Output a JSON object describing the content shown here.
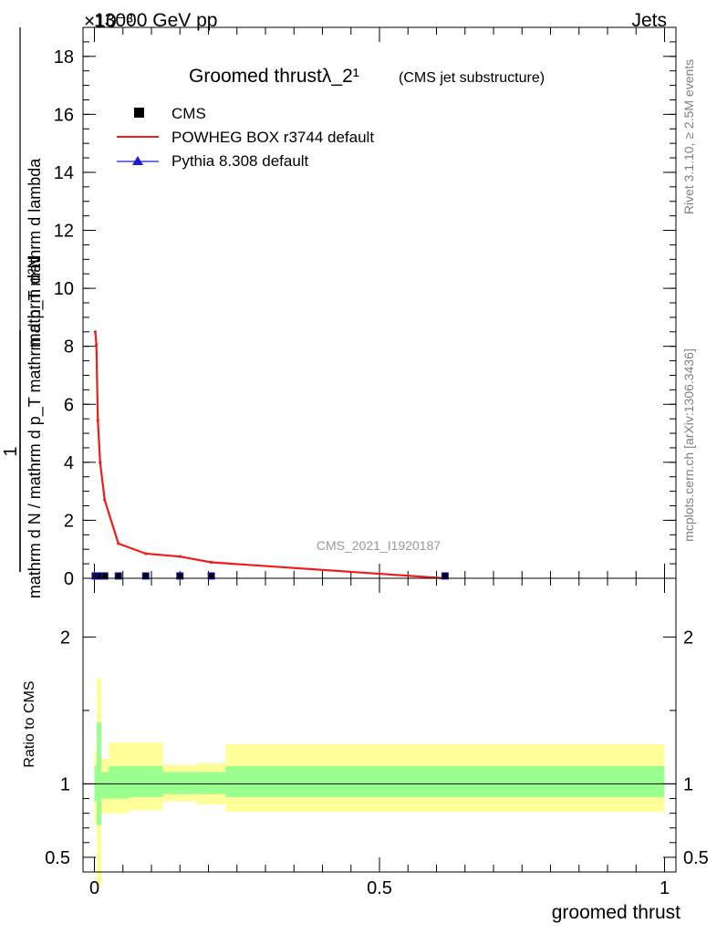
{
  "header": {
    "energy_label": "13000 GeV pp",
    "category_label": "Jets",
    "exponent_label": "×10⁻³"
  },
  "side_text": {
    "rivet": "Rivet 3.1.10, ≥ 2.5M events",
    "source": "mcplots.cern.ch [arXiv:1306.3436]"
  },
  "chart_data": {
    "type": "line",
    "title": "Groomed thrustλ_2¹",
    "subtitle": "(CMS jet substructure)",
    "analysis_label": "CMS_2021_I1920187",
    "ylabel_numerator": "mathrm d²N",
    "ylabel_denominator": "mathrm d N / mathrm d p_T mathrm d p_T mathrm d lambda",
    "ylabel_prefix": "1",
    "xlabel": "groomed thrust",
    "ratio_ylabel": "Ratio to CMS",
    "main_ylim": [
      0,
      19
    ],
    "main_yscale_note": "×10⁻³",
    "main_yticks": [
      "0",
      "2",
      "4",
      "6",
      "8",
      "10",
      "12",
      "14",
      "16",
      "18"
    ],
    "xlim": [
      -0.02,
      1.02
    ],
    "xticks": [
      "0",
      "0.5",
      "1"
    ],
    "ratio_ylim": [
      0.4,
      2.4
    ],
    "ratio_yticks": [
      "0.5",
      "1",
      "2"
    ],
    "legend_position": "top-left",
    "series": [
      {
        "name": "CMS",
        "style": "markers",
        "color": "#000000",
        "x": [
          0.0015,
          0.006,
          0.01,
          0.018,
          0.042,
          0.09,
          0.15,
          0.205,
          0.615
        ],
        "y": [
          0.08,
          0.08,
          0.08,
          0.08,
          0.08,
          0.08,
          0.08,
          0.08,
          0.08
        ]
      },
      {
        "name": "POWHEG BOX r3744 default",
        "style": "line",
        "color": "#ee1c1c",
        "x": [
          0.0015,
          0.0035,
          0.006,
          0.01,
          0.018,
          0.042,
          0.09,
          0.15,
          0.205,
          0.615
        ],
        "y": [
          8.5,
          8.05,
          5.45,
          4.0,
          2.7,
          1.2,
          0.85,
          0.75,
          0.55,
          0.0
        ]
      },
      {
        "name": "Pythia 8.308 default",
        "style": "markers",
        "color": "#1c1cd0",
        "x": [],
        "y": []
      }
    ],
    "ratio_bands": {
      "edges": [
        0.0,
        0.004,
        0.012,
        0.025,
        0.06,
        0.12,
        0.18,
        0.23,
        1.0
      ],
      "inner_low": [
        0.88,
        0.72,
        0.9,
        0.9,
        0.91,
        0.93,
        0.93,
        0.91
      ],
      "inner_high": [
        1.12,
        1.42,
        1.08,
        1.12,
        1.12,
        1.08,
        1.08,
        1.12
      ],
      "outer_low": [
        0.72,
        0.3,
        0.8,
        0.8,
        0.82,
        0.88,
        0.86,
        0.81
      ],
      "outer_high": [
        1.22,
        1.72,
        1.17,
        1.28,
        1.28,
        1.13,
        1.14,
        1.27
      ],
      "inner_color": "#99ff8f",
      "outer_color": "#ffff99"
    }
  }
}
